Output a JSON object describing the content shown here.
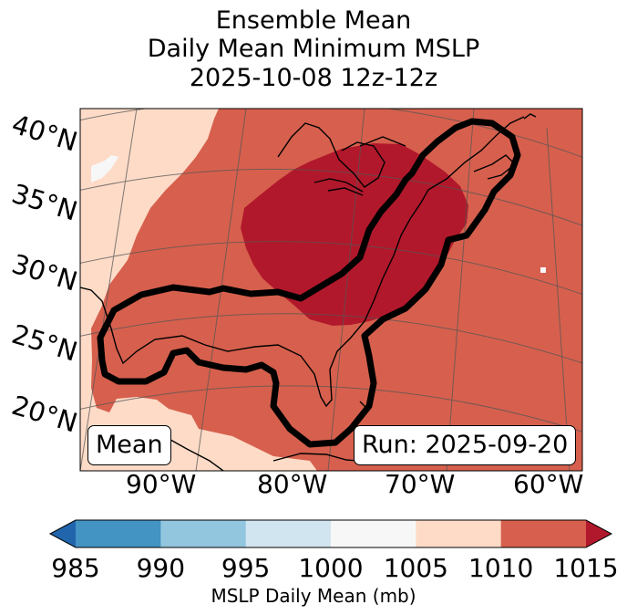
{
  "title": {
    "line1": "Ensemble Mean",
    "line2": "Daily Mean Minimum MSLP",
    "line3": "2025-10-08 12z-12z"
  },
  "latitude_labels": [
    "40°N",
    "35°N",
    "30°N",
    "25°N",
    "20°N"
  ],
  "longitude_labels": [
    "90°W",
    "80°W",
    "70°W",
    "60°W"
  ],
  "annotations": {
    "left_box": "Mean",
    "right_box": "Run: 2025-09-20"
  },
  "colorbar": {
    "label": "MSLP Daily Mean (mb)",
    "ticks": [
      "985",
      "990",
      "995",
      "1000",
      "1005",
      "1010",
      "1015"
    ],
    "colors": [
      "#2166ac",
      "#4393c3",
      "#92c5de",
      "#d1e5f0",
      "#f7f7f7",
      "#fddbc7",
      "#d6604d",
      "#b2182b"
    ]
  },
  "map_fill_colors": {
    "1005-1010": "#fddbc7",
    "1010-1015": "#d6604d",
    "above-1015": "#b2182b",
    "contour": "#000000"
  }
}
